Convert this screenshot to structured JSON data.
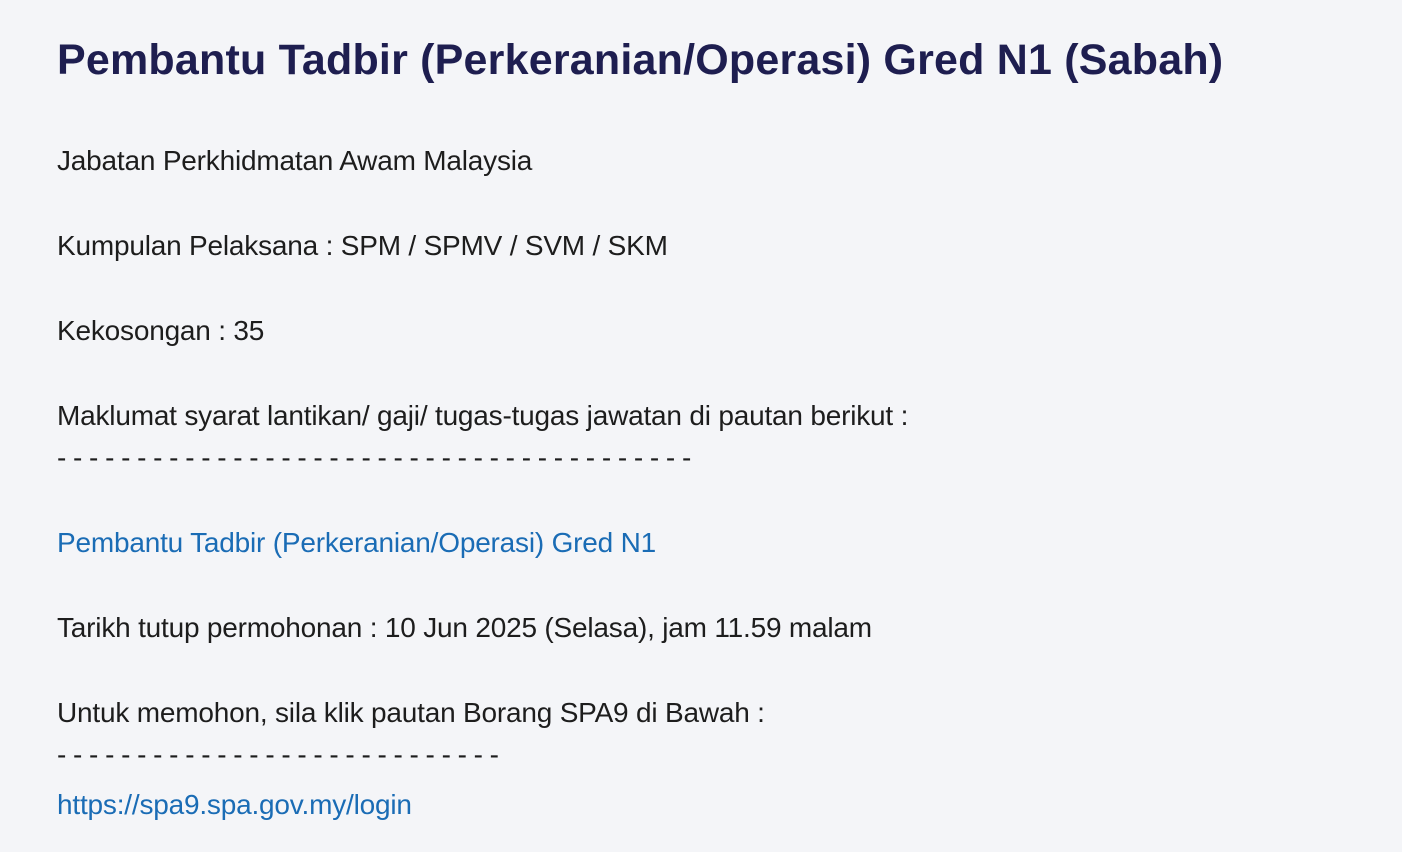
{
  "theme": {
    "background_color": "#f4f5f8",
    "heading_color": "#1e1e50",
    "body_text_color": "#1d1d1d",
    "link_color": "#1a6cb5"
  },
  "posting": {
    "title": "Pembantu Tadbir (Perkeranian/Operasi) Gred N1 (Sabah)",
    "department_line": "Jabatan Perkhidmatan Awam Malaysia",
    "group_line": "Kumpulan Pelaksana : SPM / SPMV / SVM / SKM",
    "vacancies_line": "Kekosongan : 35",
    "info_line": "Maklumat syarat lantikan/ gaji/ tugas-tugas jawatan di pautan berikut :",
    "divider1": "----------------------------------------",
    "job_link_label": "Pembantu Tadbir (Perkeranian/Operasi) Gred N1",
    "deadline_line": "Tarikh tutup permohonan : 10 Jun 2025 (Selasa), jam 11.59 malam",
    "apply_line": "Untuk memohon, sila klik pautan Borang SPA9 di Bawah :",
    "divider2": "----------------------------",
    "apply_url_label": "https://spa9.spa.gov.my/login"
  }
}
